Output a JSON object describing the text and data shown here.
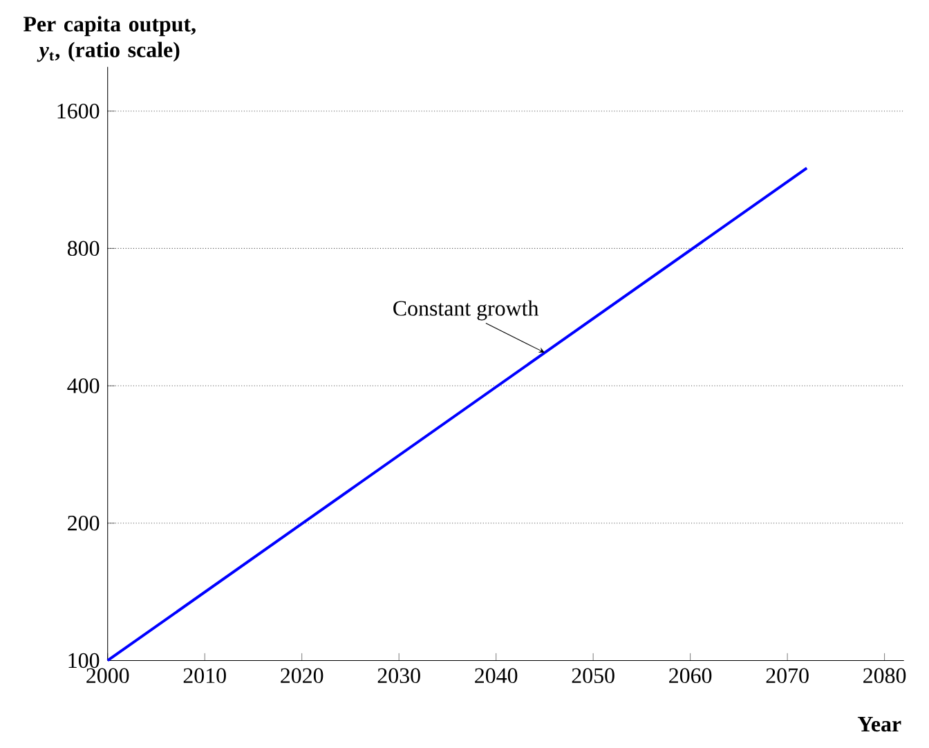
{
  "chart_data": {
    "type": "line",
    "ylabel": "Per capita output, *y*$_{t}$, (ratio scale)",
    "xlabel": "Year",
    "x": [
      2000,
      2072
    ],
    "series": [
      {
        "color": "#0000ff",
        "values": [
          100,
          1200
        ]
      }
    ],
    "xlim": [
      2000,
      2082
    ],
    "xticks": [
      2000,
      2010,
      2020,
      2030,
      2040,
      2050,
      2060,
      2070,
      2080
    ],
    "ylim": [
      100,
      2000
    ],
    "yticks": [
      100,
      200,
      400,
      800,
      1600
    ],
    "log": "y",
    "grid": "y",
    "marker": "none",
    "line_style": "solid",
    "annotations": [
      {
        "text": "Constant growth",
        "x": 2045,
        "y": 473
      }
    ]
  }
}
